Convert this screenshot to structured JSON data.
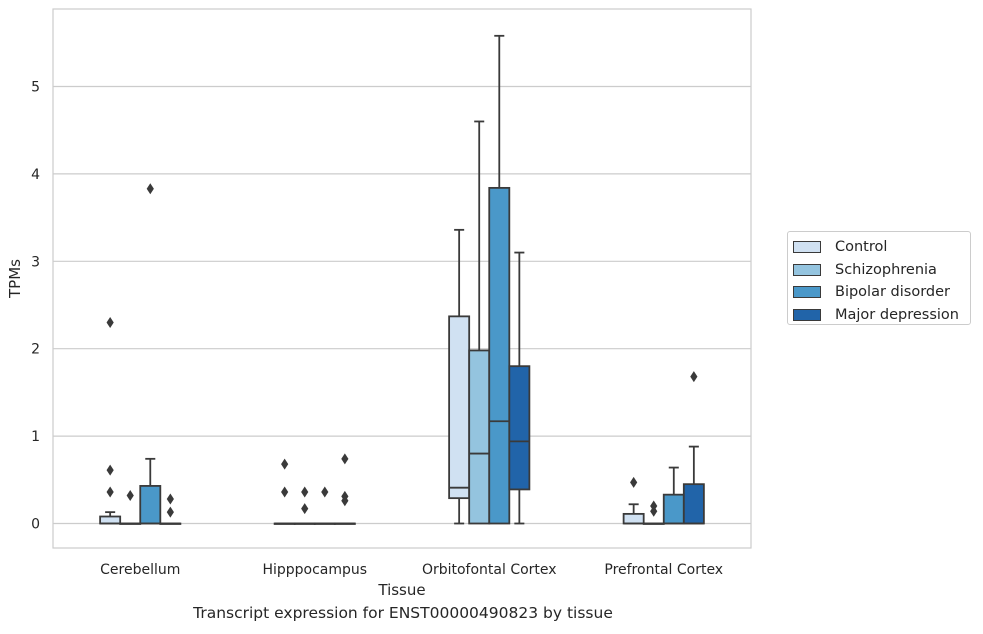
{
  "chart_data": {
    "type": "box",
    "xlabel": "Tissue",
    "ylabel": "TPMs",
    "caption": "Transcript expression for ENST00000490823 by tissue",
    "categories": [
      "Cerebellum",
      "Hipppocampus",
      "Orbitofontal Cortex",
      "Prefrontal Cortex"
    ],
    "ylim": [
      -0.27,
      5.9
    ],
    "yticks": [
      0,
      1,
      2,
      3,
      4,
      5
    ],
    "grid": true,
    "legend_position": "right",
    "series": [
      {
        "name": "Control",
        "color": "#d0e1f2",
        "boxes": [
          {
            "q1": 0.0,
            "median": 0.0,
            "q3": 0.08,
            "whislo": 0.0,
            "whishi": 0.13,
            "fliers": [
              2.3,
              0.61,
              0.36
            ]
          },
          {
            "q1": 0.0,
            "median": 0.0,
            "q3": 0.0,
            "whislo": 0.0,
            "whishi": 0.0,
            "fliers": [
              0.68,
              0.36
            ]
          },
          {
            "q1": 0.29,
            "median": 0.41,
            "q3": 2.37,
            "whislo": 0.0,
            "whishi": 3.36,
            "fliers": []
          },
          {
            "q1": 0.0,
            "median": 0.0,
            "q3": 0.11,
            "whislo": 0.0,
            "whishi": 0.22,
            "fliers": [
              0.47
            ]
          }
        ]
      },
      {
        "name": "Schizophrenia",
        "color": "#94c4df",
        "boxes": [
          {
            "q1": 0.0,
            "median": 0.0,
            "q3": 0.0,
            "whislo": 0.0,
            "whishi": 0.0,
            "fliers": [
              0.32
            ]
          },
          {
            "q1": 0.0,
            "median": 0.0,
            "q3": 0.0,
            "whislo": 0.0,
            "whishi": 0.0,
            "fliers": [
              0.36,
              0.17
            ]
          },
          {
            "q1": 0.0,
            "median": 0.8,
            "q3": 1.98,
            "whislo": 0.0,
            "whishi": 4.6,
            "fliers": []
          },
          {
            "q1": 0.0,
            "median": 0.0,
            "q3": 0.0,
            "whislo": 0.0,
            "whishi": 0.0,
            "fliers": [
              0.2,
              0.14
            ]
          }
        ]
      },
      {
        "name": "Bipolar disorder",
        "color": "#4a98c9",
        "boxes": [
          {
            "q1": 0.0,
            "median": 0.0,
            "q3": 0.43,
            "whislo": 0.0,
            "whishi": 0.74,
            "fliers": [
              3.83
            ]
          },
          {
            "q1": 0.0,
            "median": 0.0,
            "q3": 0.0,
            "whislo": 0.0,
            "whishi": 0.0,
            "fliers": [
              0.36
            ]
          },
          {
            "q1": 0.0,
            "median": 1.17,
            "q3": 3.84,
            "whislo": 0.0,
            "whishi": 5.58,
            "fliers": []
          },
          {
            "q1": 0.0,
            "median": 0.0,
            "q3": 0.33,
            "whislo": 0.0,
            "whishi": 0.64,
            "fliers": []
          }
        ]
      },
      {
        "name": "Major depression",
        "color": "#2164a9",
        "boxes": [
          {
            "q1": 0.0,
            "median": 0.0,
            "q3": 0.0,
            "whislo": 0.0,
            "whishi": 0.0,
            "fliers": [
              0.28,
              0.13
            ]
          },
          {
            "q1": 0.0,
            "median": 0.0,
            "q3": 0.0,
            "whislo": 0.0,
            "whishi": 0.0,
            "fliers": [
              0.74,
              0.31,
              0.26
            ]
          },
          {
            "q1": 0.39,
            "median": 0.94,
            "q3": 1.8,
            "whislo": 0.0,
            "whishi": 3.1,
            "fliers": []
          },
          {
            "q1": 0.0,
            "median": 0.0,
            "q3": 0.45,
            "whislo": 0.0,
            "whishi": 0.88,
            "fliers": [
              1.68
            ]
          }
        ]
      }
    ]
  }
}
